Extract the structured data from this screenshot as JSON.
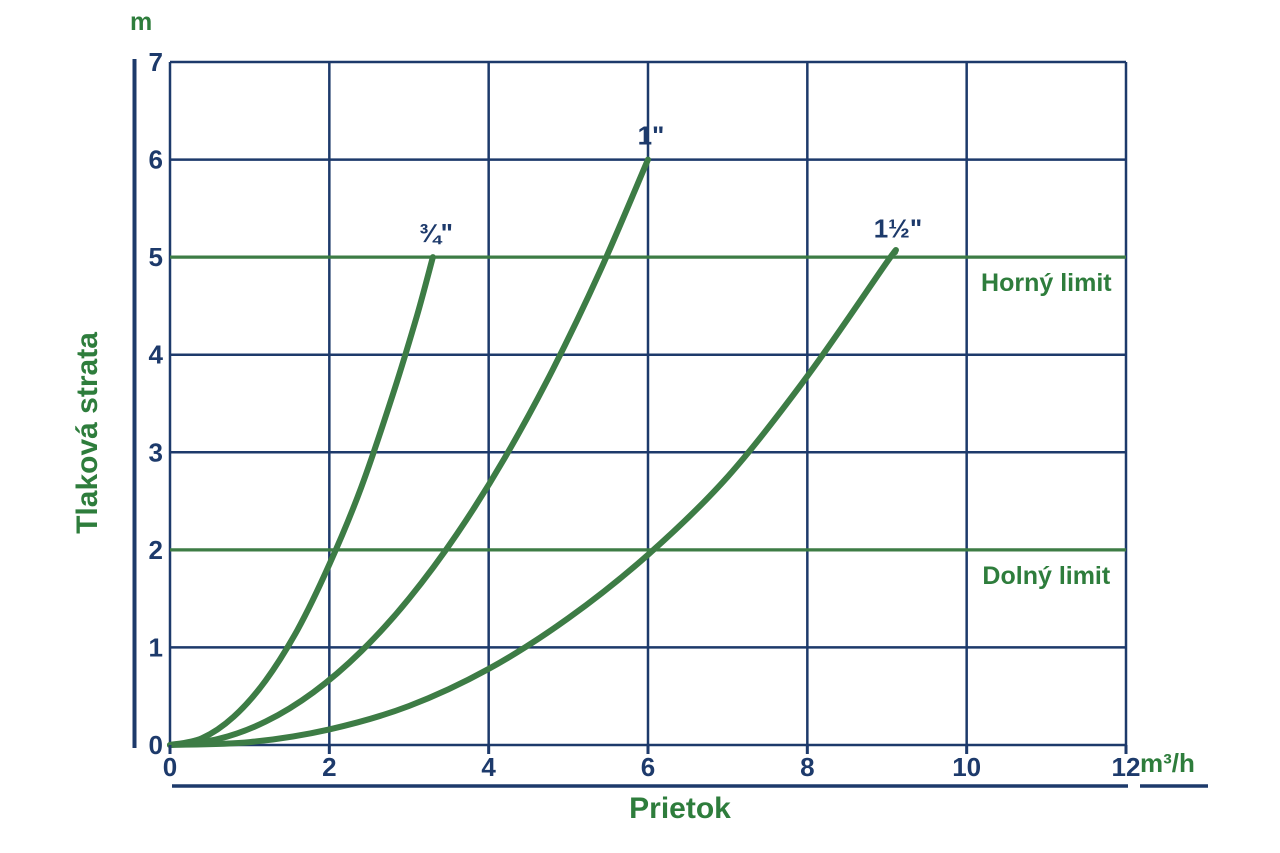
{
  "labels": {
    "y_axis_title": "Tlaková strata",
    "x_axis_title": "Prietok",
    "y_unit": "m",
    "x_unit": "m³/h"
  },
  "chart_data": {
    "type": "line",
    "title": "",
    "xlabel": "Prietok",
    "ylabel": "Tlaková strata",
    "x_unit": "m³/h",
    "y_unit": "m",
    "xlim": [
      0,
      12
    ],
    "ylim": [
      0,
      7
    ],
    "x_ticks": [
      0,
      2,
      4,
      6,
      8,
      10,
      12
    ],
    "y_ticks": [
      0,
      1,
      2,
      3,
      4,
      5,
      6,
      7
    ],
    "grid": true,
    "legend_position": "inline-curve-labels",
    "series": [
      {
        "name": "¾\"",
        "points": [
          [
            0,
            0
          ],
          [
            0.4,
            0.07
          ],
          [
            0.8,
            0.29
          ],
          [
            1.2,
            0.66
          ],
          [
            1.6,
            1.18
          ],
          [
            2.0,
            1.85
          ],
          [
            2.4,
            2.64
          ],
          [
            2.8,
            3.6
          ],
          [
            3.1,
            4.4
          ],
          [
            3.3,
            5.0
          ]
        ]
      },
      {
        "name": "1\"",
        "points": [
          [
            0,
            0
          ],
          [
            0.6,
            0.06
          ],
          [
            1.2,
            0.24
          ],
          [
            1.8,
            0.54
          ],
          [
            2.4,
            0.96
          ],
          [
            3.0,
            1.5
          ],
          [
            3.6,
            2.16
          ],
          [
            4.2,
            2.94
          ],
          [
            4.8,
            3.84
          ],
          [
            5.4,
            4.86
          ],
          [
            6.0,
            6.0
          ]
        ]
      },
      {
        "name": "1½\"",
        "points": [
          [
            0,
            0
          ],
          [
            1,
            0.03
          ],
          [
            2,
            0.16
          ],
          [
            3,
            0.4
          ],
          [
            4,
            0.78
          ],
          [
            5,
            1.3
          ],
          [
            6,
            1.95
          ],
          [
            7,
            2.75
          ],
          [
            8,
            3.78
          ],
          [
            9,
            4.95
          ],
          [
            9.1,
            5.05
          ]
        ]
      }
    ],
    "limit_lines": [
      {
        "label": "Horný limit",
        "y": 5
      },
      {
        "label": "Dolný limit",
        "y": 2
      }
    ],
    "colors": {
      "curve_green": "#3d7c45",
      "limit_green": "#3d7c45",
      "grid_navy": "#1d3a6b",
      "axis_navy": "#1d3a6b",
      "text_green": "#2e7d3c",
      "text_navy": "#1d3a6b",
      "background": "#ffffff"
    }
  }
}
